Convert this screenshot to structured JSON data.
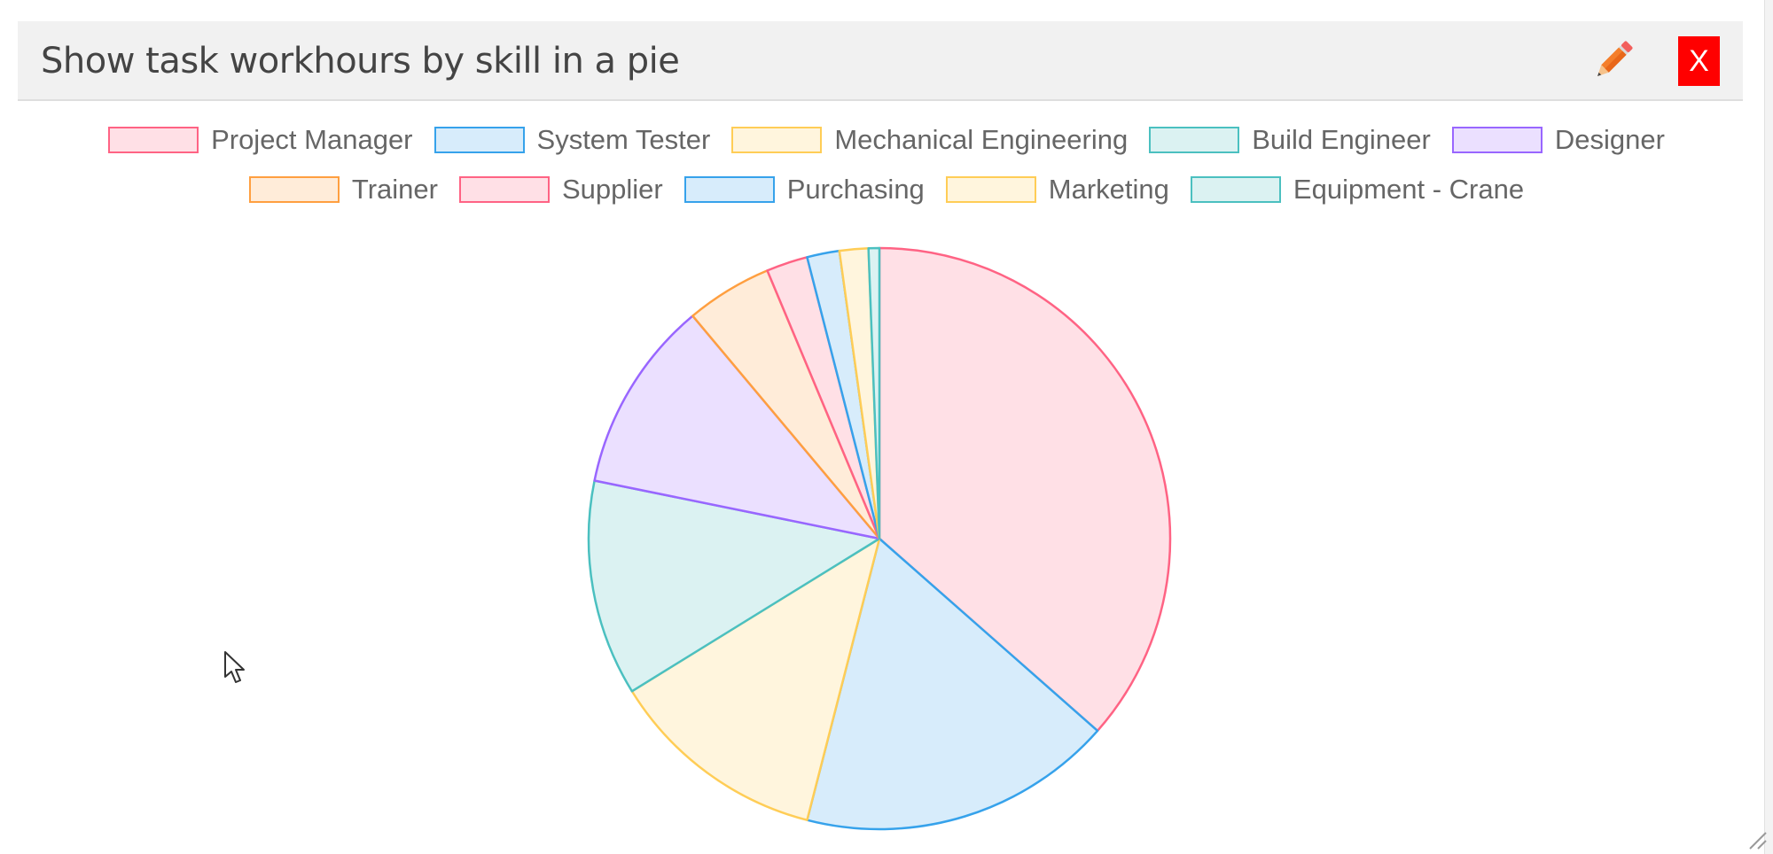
{
  "dialog": {
    "title": "Show task workhours by skill in a pie",
    "edit_icon": "pencil-icon",
    "close_label": "X"
  },
  "colors": {
    "header_bg": "#f1f1f1",
    "close_bg": "#ff0000",
    "pencil": "#f47e2b"
  },
  "chart_data": {
    "type": "pie",
    "title": "",
    "categories": [
      "Project Manager",
      "System Tester",
      "Mechanical Engineering",
      "Build Engineer",
      "Designer",
      "Trainer",
      "Supplier",
      "Purchasing",
      "Marketing",
      "Equipment - Crane"
    ],
    "values": [
      36.5,
      17.5,
      12.2,
      12.0,
      10.7,
      4.8,
      2.3,
      1.8,
      1.6,
      0.6
    ],
    "colors": [
      {
        "border": "#ff6384",
        "fill": "#ffe0e6"
      },
      {
        "border": "#36a2eb",
        "fill": "#d7ecfb"
      },
      {
        "border": "#ffcd56",
        "fill": "#fff5dd"
      },
      {
        "border": "#4bc0c0",
        "fill": "#dbf2f2"
      },
      {
        "border": "#9966ff",
        "fill": "#ebe0ff"
      },
      {
        "border": "#ff9f40",
        "fill": "#ffecd9"
      },
      {
        "border": "#ff6384",
        "fill": "#ffe0e6"
      },
      {
        "border": "#36a2eb",
        "fill": "#d7ecfb"
      },
      {
        "border": "#ffcd56",
        "fill": "#fff5dd"
      },
      {
        "border": "#4bc0c0",
        "fill": "#dbf2f2"
      }
    ],
    "legend_position": "top"
  }
}
